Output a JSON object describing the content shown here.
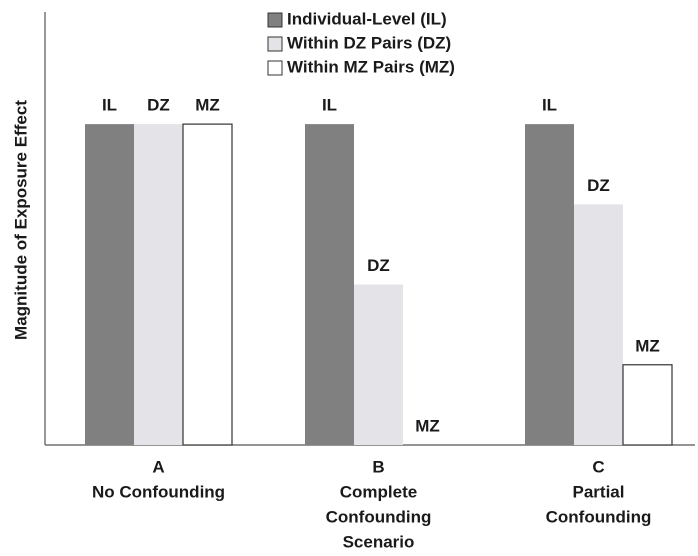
{
  "chart_data": {
    "type": "bar",
    "ylabel": "Magnitude of Exposure Effect",
    "categories": [
      [
        "A",
        "No Confounding"
      ],
      [
        "B",
        "Complete",
        "Confounding",
        "Scenario"
      ],
      [
        "C",
        "Partial",
        "Confounding"
      ]
    ],
    "series": [
      {
        "name": "Individual-Level (IL)",
        "label": "IL",
        "color": "#808080",
        "values": [
          100,
          100,
          100
        ]
      },
      {
        "name": "Within DZ Pairs (DZ)",
        "label": "DZ",
        "color": "#e4e4e8",
        "values": [
          100,
          50,
          75
        ]
      },
      {
        "name": "Within MZ Pairs (MZ)",
        "label": "MZ",
        "color": "#ffffff",
        "values": [
          100,
          0,
          25
        ]
      }
    ],
    "ylim": [
      0,
      134
    ],
    "grid": false,
    "legend": "top"
  }
}
